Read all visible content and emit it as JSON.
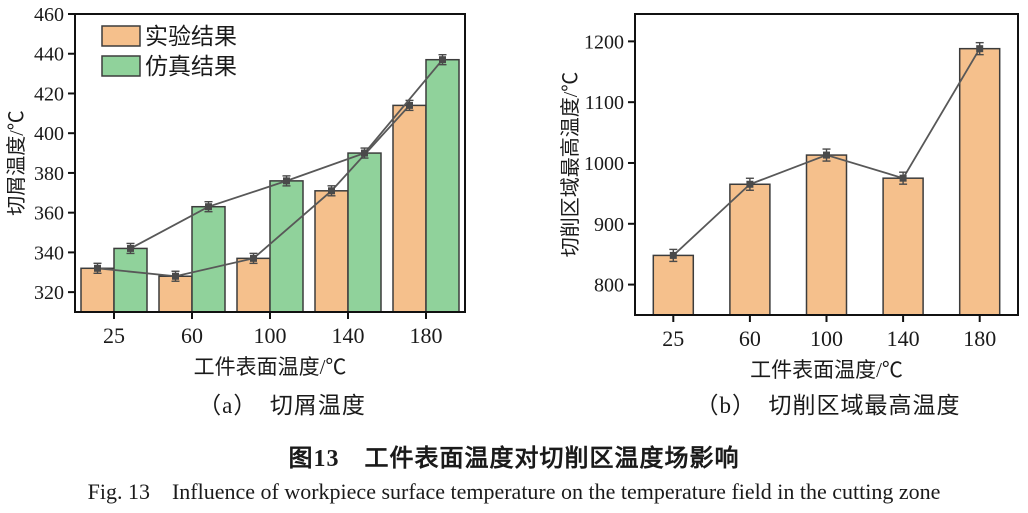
{
  "figure": {
    "caption_zh": "图13　工件表面温度对切削区温度场影响",
    "caption_en": "Fig. 13　Influence of workpiece surface temperature on the temperature field in the cutting zone"
  },
  "colors": {
    "experiment_bar": "#F5C08C",
    "simulation_bar": "#90D29B",
    "bar_outline": "#3C3C3C",
    "overlay_line": "#585858",
    "marker": "#4A4A4A",
    "axis": "#111111"
  },
  "chart_data": [
    {
      "type": "bar",
      "panel": "a",
      "subcaption": "（a）　切屑温度",
      "xlabel": "工件表面温度/℃",
      "ylabel": "切屑温度/℃",
      "categories": [
        "25",
        "60",
        "100",
        "140",
        "180"
      ],
      "series": [
        {
          "name": "实验结果",
          "color": "#F5C08C",
          "values": [
            332,
            328,
            337,
            371,
            414
          ]
        },
        {
          "name": "仿真结果",
          "color": "#90D29B",
          "values": [
            342,
            363,
            376,
            390,
            437
          ]
        }
      ],
      "line_overlay": true,
      "error_bar": 3,
      "ylim": [
        310,
        460
      ],
      "yticks": [
        320,
        340,
        360,
        380,
        400,
        420,
        440,
        460
      ],
      "legend_position": "top-left",
      "grid": false
    },
    {
      "type": "bar",
      "panel": "b",
      "subcaption": "（b）　切削区域最高温度",
      "xlabel": "工件表面温度/℃",
      "ylabel": "切削区域最高温度/℃",
      "categories": [
        "25",
        "60",
        "100",
        "140",
        "180"
      ],
      "series": [
        {
          "name": "切削区域最高温度",
          "color": "#F5C08C",
          "values": [
            848,
            965,
            1013,
            975,
            1188
          ]
        }
      ],
      "line_overlay": true,
      "error_bar": 4,
      "ylim": [
        750,
        1245
      ],
      "yticks": [
        800,
        900,
        1000,
        1100,
        1200
      ],
      "legend_position": "none",
      "grid": false
    }
  ]
}
